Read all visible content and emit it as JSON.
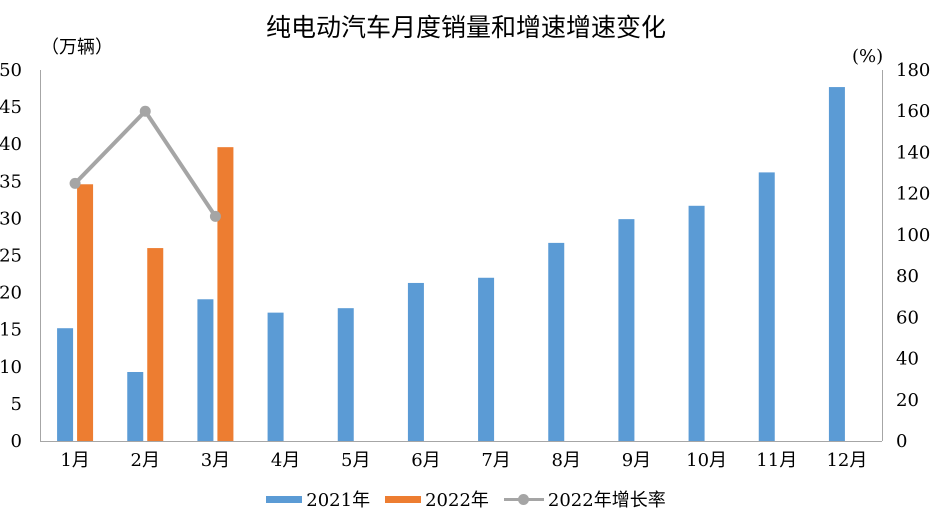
{
  "title": "纯电动汽车月度销量和增速增速变化",
  "colors": {
    "series_2021": "#5B9BD5",
    "series_2022": "#ED7D31",
    "growth_line": "#A5A5A5",
    "axis_line": "#A6A6A6",
    "text": "#000000",
    "background": "#FFFFFF"
  },
  "chart_data": {
    "type": "bar+line",
    "title": "纯电动汽车月度销量和增速增速变化",
    "categories": [
      "1月",
      "2月",
      "3月",
      "4月",
      "5月",
      "6月",
      "7月",
      "8月",
      "9月",
      "10月",
      "11月",
      "12月"
    ],
    "series": [
      {
        "name": "2021年",
        "type": "bar",
        "axis": "left",
        "color": "#5B9BD5",
        "values": [
          15.2,
          9.3,
          19.1,
          17.3,
          17.9,
          21.3,
          22.0,
          26.7,
          29.9,
          31.7,
          36.2,
          47.7
        ]
      },
      {
        "name": "2022年",
        "type": "bar",
        "axis": "left",
        "color": "#ED7D31",
        "values": [
          34.6,
          26.0,
          39.6,
          null,
          null,
          null,
          null,
          null,
          null,
          null,
          null,
          null
        ]
      },
      {
        "name": "2022年增长率",
        "type": "line",
        "axis": "right",
        "color": "#A5A5A5",
        "values": [
          125,
          160,
          109,
          null,
          null,
          null,
          null,
          null,
          null,
          null,
          null,
          null
        ]
      }
    ],
    "left_axis_label": "（万辆）",
    "right_axis_label": "(%)",
    "left_ylim": [
      0,
      50
    ],
    "left_step": 5,
    "right_ylim": [
      0,
      180
    ],
    "right_step": 20,
    "grid": false,
    "legend_position": "bottom"
  }
}
